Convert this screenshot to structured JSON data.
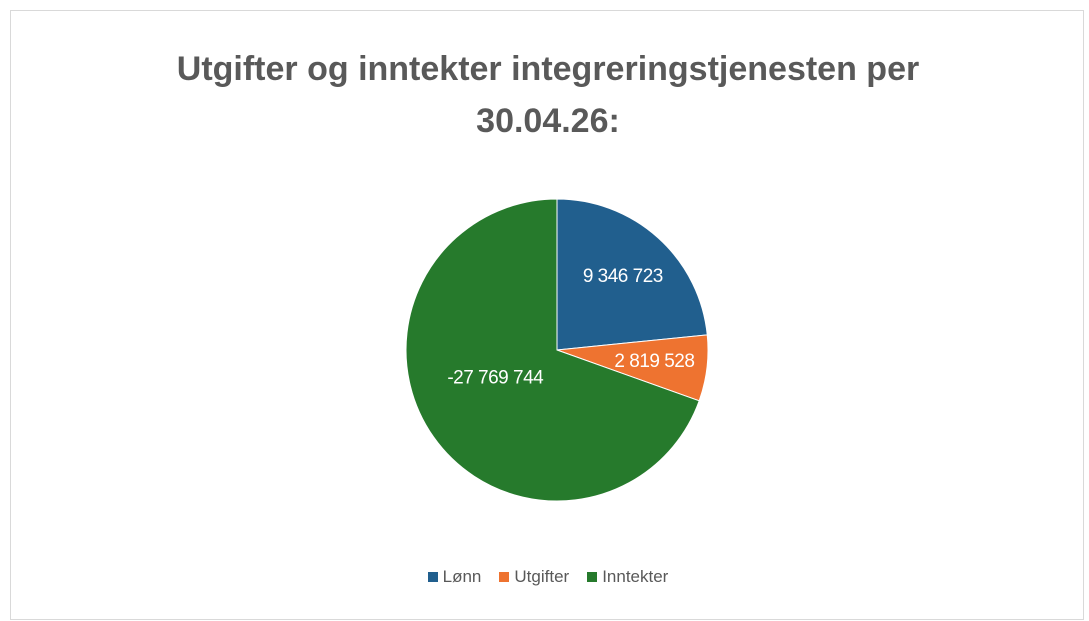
{
  "chart_data": {
    "type": "pie",
    "title": "Utgifter og inntekter integreringstjenesten per 30.04.26:",
    "categories": [
      "Lønn",
      "Utgifter",
      "Inntekter"
    ],
    "values": [
      9346723,
      2819528,
      -27769744
    ],
    "value_labels": [
      "9 346 723",
      "2 819 528",
      "-27 769 744"
    ],
    "colors": [
      "#215f8e",
      "#ee7330",
      "#267a2c"
    ],
    "legend": "bottom"
  }
}
